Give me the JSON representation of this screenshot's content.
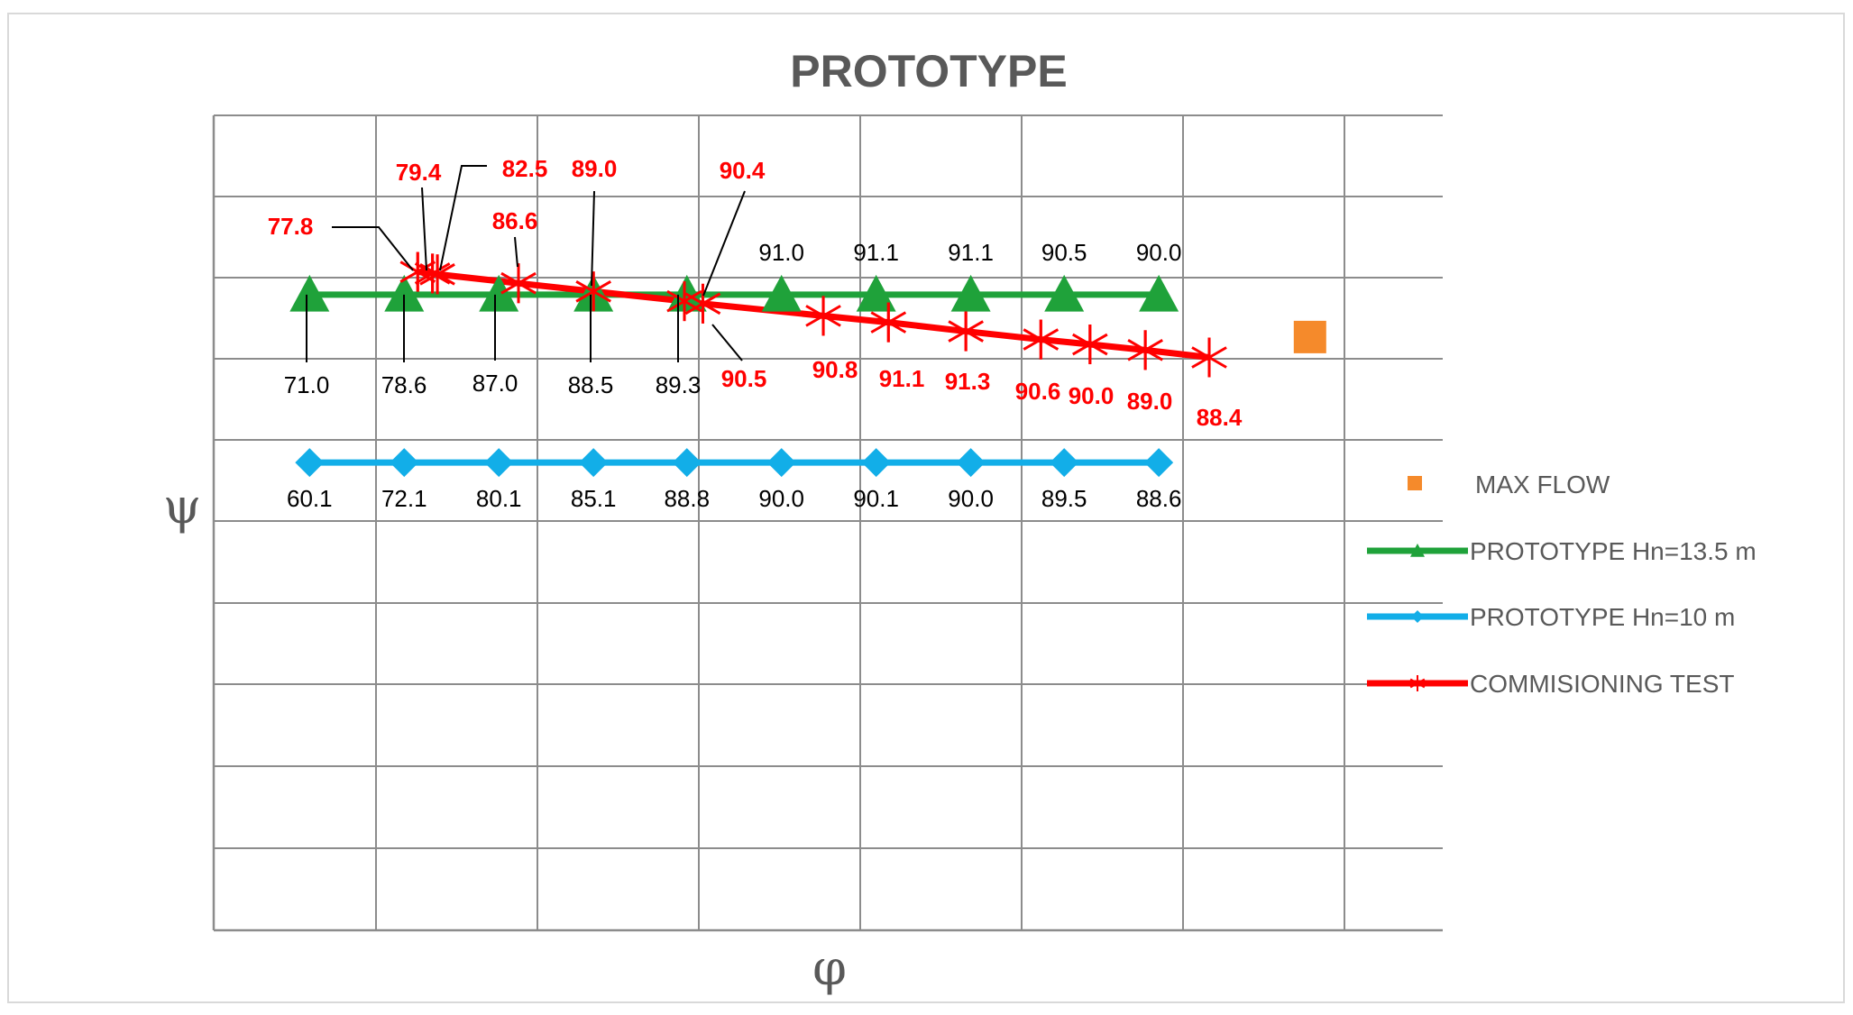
{
  "chart_data": {
    "type": "line",
    "title": "PROTOTYPE",
    "xlabel": "φ",
    "ylabel": "ψ",
    "xlim": [
      0,
      1
    ],
    "ylim": [
      0,
      1
    ],
    "grid": true,
    "legend_position": "right",
    "series": [
      {
        "name": "MAX FLOW",
        "color": "#f58a2b",
        "marker": "square",
        "line": false,
        "points": [
          {
            "x": 0.892,
            "y": 0.728
          }
        ]
      },
      {
        "name": "PROTOTYPE Hn=13.5 m",
        "color": "#1fa23a",
        "marker": "triangle",
        "points": [
          {
            "x": 0.078,
            "y": 0.78,
            "label": "71.0"
          },
          {
            "x": 0.155,
            "y": 0.78,
            "label": "78.6"
          },
          {
            "x": 0.232,
            "y": 0.78,
            "label": "87.0"
          },
          {
            "x": 0.309,
            "y": 0.78,
            "label": "88.5"
          },
          {
            "x": 0.385,
            "y": 0.78,
            "label": "89.3"
          },
          {
            "x": 0.462,
            "y": 0.78,
            "label": "91.0"
          },
          {
            "x": 0.539,
            "y": 0.78,
            "label": "91.1"
          },
          {
            "x": 0.616,
            "y": 0.78,
            "label": "91.1"
          },
          {
            "x": 0.692,
            "y": 0.78,
            "label": "90.5"
          },
          {
            "x": 0.769,
            "y": 0.78,
            "label": "90.0"
          }
        ]
      },
      {
        "name": "PROTOTYPE Hn=10 m",
        "color": "#12aee8",
        "marker": "diamond",
        "points": [
          {
            "x": 0.078,
            "y": 0.574,
            "label": "60.1"
          },
          {
            "x": 0.155,
            "y": 0.574,
            "label": "72.1"
          },
          {
            "x": 0.232,
            "y": 0.574,
            "label": "80.1"
          },
          {
            "x": 0.309,
            "y": 0.574,
            "label": "85.1"
          },
          {
            "x": 0.385,
            "y": 0.574,
            "label": "88.8"
          },
          {
            "x": 0.462,
            "y": 0.574,
            "label": "90.0"
          },
          {
            "x": 0.539,
            "y": 0.574,
            "label": "90.1"
          },
          {
            "x": 0.616,
            "y": 0.574,
            "label": "90.0"
          },
          {
            "x": 0.692,
            "y": 0.574,
            "label": "89.5"
          },
          {
            "x": 0.769,
            "y": 0.574,
            "label": "88.6"
          }
        ]
      },
      {
        "name": "COMMISIONING TEST",
        "color": "#ff0000",
        "marker": "asterisk",
        "points": [
          {
            "x": 0.166,
            "y": 0.808,
            "label": "77.8"
          },
          {
            "x": 0.178,
            "y": 0.806,
            "label": "79.4"
          },
          {
            "x": 0.182,
            "y": 0.805,
            "label": "82.5"
          },
          {
            "x": 0.248,
            "y": 0.794,
            "label": "86.6"
          },
          {
            "x": 0.309,
            "y": 0.784,
            "label": "89.0"
          },
          {
            "x": 0.383,
            "y": 0.772,
            "label": "90.4"
          },
          {
            "x": 0.398,
            "y": 0.769,
            "label": "90.5"
          },
          {
            "x": 0.496,
            "y": 0.754,
            "label": "90.8"
          },
          {
            "x": 0.549,
            "y": 0.746,
            "label": "91.1"
          },
          {
            "x": 0.612,
            "y": 0.735,
            "label": "91.3"
          },
          {
            "x": 0.673,
            "y": 0.725,
            "label": "90.6"
          },
          {
            "x": 0.713,
            "y": 0.719,
            "label": "90.0"
          },
          {
            "x": 0.758,
            "y": 0.712,
            "label": "89.0"
          },
          {
            "x": 0.81,
            "y": 0.703,
            "label": "88.4"
          }
        ]
      }
    ]
  }
}
